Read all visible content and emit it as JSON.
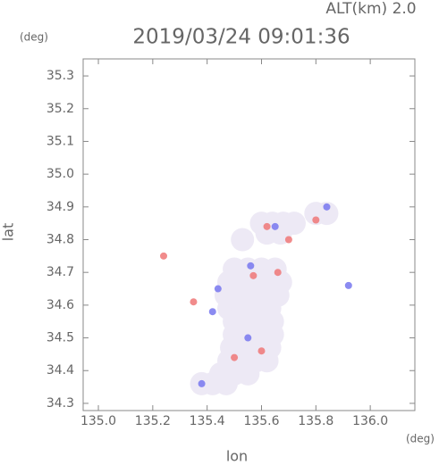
{
  "chart_data": {
    "type": "scatter",
    "title": "2019/03/24 09:01:36",
    "subtitle": "ALT(km) 2.0",
    "x_label": "lon",
    "y_label": "lat",
    "x_unit": "(deg)",
    "y_unit": "(deg)",
    "xlim": [
      134.944,
      136.164
    ],
    "ylim": [
      34.278,
      35.352
    ],
    "xticks": [
      {
        "value": 135.0,
        "label": "135.0"
      },
      135.2,
      135.4,
      135.6,
      135.8,
      {
        "value": 136.0,
        "label": "136.0"
      }
    ],
    "yticks": [
      34.3,
      34.4,
      34.5,
      34.6,
      34.7,
      34.8,
      34.9,
      {
        "value": 35.0,
        "label": "35.0"
      },
      35.1,
      35.2,
      35.3
    ],
    "grid": false,
    "series": [
      {
        "color": "#ede9f5",
        "x": [
          135.5,
          135.55,
          135.6,
          135.65,
          135.48,
          135.53,
          135.58,
          135.63,
          135.67,
          135.47,
          135.52,
          135.57,
          135.62,
          135.66,
          135.48,
          135.53,
          135.58,
          135.63,
          135.5,
          135.55,
          135.6,
          135.64,
          135.5,
          135.55,
          135.6,
          135.64,
          135.49,
          135.54,
          135.59,
          135.63,
          135.48,
          135.53,
          135.58,
          135.62,
          135.45,
          135.5,
          135.55,
          135.38,
          135.42,
          135.47,
          135.6,
          135.64,
          135.68,
          135.72,
          135.62,
          135.67,
          135.8,
          135.84,
          135.53
        ],
        "y": [
          34.71,
          34.71,
          34.71,
          34.71,
          34.67,
          34.67,
          34.67,
          34.67,
          34.67,
          34.63,
          34.63,
          34.63,
          34.63,
          34.63,
          34.59,
          34.59,
          34.59,
          34.59,
          34.55,
          34.55,
          34.55,
          34.55,
          34.51,
          34.51,
          34.51,
          34.51,
          34.47,
          34.47,
          34.47,
          34.47,
          34.43,
          34.43,
          34.43,
          34.43,
          34.39,
          34.39,
          34.39,
          34.36,
          34.36,
          34.36,
          34.85,
          34.85,
          34.85,
          34.85,
          34.82,
          34.82,
          34.88,
          34.88,
          34.8
        ]
      },
      {
        "color": "#ee7777",
        "x": [
          135.24,
          135.5,
          135.62,
          135.7,
          135.8,
          135.35,
          135.6,
          135.57,
          135.66
        ],
        "y": [
          34.75,
          34.44,
          34.84,
          34.8,
          34.86,
          34.61,
          34.46,
          34.69,
          34.7
        ]
      },
      {
        "color": "#7777ee",
        "x": [
          135.92,
          135.38,
          135.55,
          135.44,
          135.56,
          135.65,
          135.84,
          135.42
        ],
        "y": [
          34.66,
          34.36,
          34.5,
          34.65,
          34.72,
          34.84,
          34.9,
          34.58
        ]
      }
    ]
  }
}
